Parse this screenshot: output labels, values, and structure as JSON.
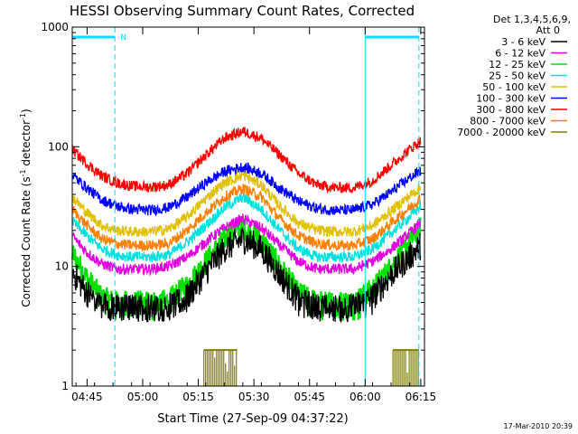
{
  "chart_data": {
    "type": "line",
    "title": "HESSI Observing Summary Count Rates, Corrected",
    "ylabel_main": "Corrected Count Rate (s",
    "ylabel_sup1": "-1",
    "ylabel_mid": " detector",
    "ylabel_sup2": "-1",
    "ylabel_end": ")",
    "xlabel": "Start Time (27-Sep-09 04:37:22)",
    "y_scale": "log",
    "ylim": [
      1,
      1000
    ],
    "y_ticks": [
      {
        "value": 1,
        "label": "1"
      },
      {
        "value": 10,
        "label": "10"
      },
      {
        "value": 100,
        "label": "100"
      },
      {
        "value": 1000,
        "label": "1000"
      }
    ],
    "x_range_min": [
      4.0,
      99.0
    ],
    "x_ticks": [
      {
        "value": 8,
        "label": "04:45"
      },
      {
        "value": 23,
        "label": "05:00"
      },
      {
        "value": 38,
        "label": "05:15"
      },
      {
        "value": 53,
        "label": "05:30"
      },
      {
        "value": 68,
        "label": "05:45"
      },
      {
        "value": 83,
        "label": "06:00"
      },
      {
        "value": 98,
        "label": "06:15"
      }
    ],
    "legend": {
      "header1": "Det 1,3,4,5,6,9,",
      "header2": "Att 0",
      "placement": "right"
    },
    "series": [
      {
        "name": "3 - 6 keV",
        "color": "#000000",
        "x": [
          4,
          8,
          12,
          16,
          20,
          25,
          30,
          35,
          40,
          45,
          50,
          55,
          60,
          65,
          70,
          75,
          80,
          85,
          90,
          95,
          98
        ],
        "y": [
          9,
          6,
          4.8,
          4.5,
          4.5,
          4.5,
          4.5,
          5.5,
          9,
          14,
          17,
          14,
          8.5,
          5.2,
          4.5,
          4.5,
          4.5,
          5.5,
          8.5,
          12,
          15
        ]
      },
      {
        "name": "6 - 12 keV",
        "color": "#e000e0",
        "x": [
          4,
          8,
          12,
          16,
          20,
          25,
          30,
          35,
          40,
          45,
          50,
          55,
          60,
          65,
          70,
          75,
          80,
          85,
          90,
          95,
          98
        ],
        "y": [
          18,
          13,
          10.5,
          9.5,
          9.5,
          9.5,
          10,
          12,
          16,
          21,
          25,
          21,
          15,
          11,
          9.5,
          9.5,
          9.5,
          11,
          14,
          19,
          23
        ]
      },
      {
        "name": "12 - 25 keV",
        "color": "#00e000",
        "x": [
          4,
          8,
          12,
          16,
          20,
          25,
          30,
          35,
          40,
          45,
          50,
          55,
          60,
          65,
          70,
          75,
          80,
          85,
          90,
          95,
          98
        ],
        "y": [
          13,
          8,
          5.5,
          5,
          5,
          5,
          5.2,
          7,
          11,
          17,
          21,
          17,
          10,
          6,
          5,
          5,
          5,
          6.5,
          10,
          16,
          21
        ]
      },
      {
        "name": "25 - 50 keV",
        "color": "#00e0e0",
        "x": [
          4,
          8,
          12,
          16,
          20,
          25,
          30,
          35,
          40,
          45,
          50,
          55,
          60,
          65,
          70,
          75,
          80,
          85,
          90,
          95,
          98
        ],
        "y": [
          24,
          18,
          14,
          12.5,
          12,
          12,
          12.5,
          16,
          22,
          31,
          38,
          30,
          20,
          14,
          12,
          12,
          12,
          14,
          19,
          26,
          32
        ]
      },
      {
        "name": "50 - 100 keV",
        "color": "#e0c000",
        "x": [
          4,
          8,
          12,
          16,
          20,
          25,
          30,
          35,
          40,
          45,
          50,
          55,
          60,
          65,
          70,
          75,
          80,
          85,
          90,
          95,
          98
        ],
        "y": [
          38,
          28,
          22,
          20,
          19.5,
          19.5,
          20.5,
          26,
          37,
          50,
          58,
          48,
          32,
          23,
          20,
          19.5,
          19.5,
          22,
          29,
          39,
          46
        ]
      },
      {
        "name": "100 - 300 keV",
        "color": "#0000ff",
        "x": [
          4,
          8,
          12,
          16,
          20,
          25,
          30,
          35,
          40,
          45,
          50,
          55,
          60,
          65,
          70,
          75,
          80,
          85,
          90,
          95,
          98
        ],
        "y": [
          58,
          45,
          36,
          32,
          30,
          29.5,
          31,
          38,
          50,
          62,
          68,
          60,
          45,
          35,
          30.5,
          29.5,
          29.5,
          33,
          42,
          55,
          63
        ]
      },
      {
        "name": "300 - 800 keV",
        "color": "#ff0000",
        "x": [
          4,
          8,
          12,
          16,
          20,
          25,
          30,
          35,
          40,
          45,
          50,
          55,
          60,
          65,
          70,
          75,
          80,
          85,
          90,
          95,
          98
        ],
        "y": [
          95,
          72,
          57,
          50,
          47,
          46,
          48,
          60,
          85,
          118,
          135,
          118,
          85,
          60,
          48,
          45.5,
          45.5,
          52,
          70,
          95,
          112
        ]
      },
      {
        "name": "800 - 7000 keV",
        "color": "#ff8000",
        "x": [
          4,
          8,
          12,
          16,
          20,
          25,
          30,
          35,
          40,
          45,
          50,
          55,
          60,
          65,
          70,
          75,
          80,
          85,
          90,
          95,
          98
        ],
        "y": [
          30,
          22,
          17,
          15.5,
          15,
          15,
          15.5,
          20,
          28,
          38,
          45,
          38,
          25,
          18,
          15.5,
          15,
          15,
          17,
          23,
          31,
          37
        ]
      },
      {
        "name": "7000 - 20000 keV",
        "color": "#808000",
        "bars": [
          [
            39.5,
            48.5
          ],
          [
            90.5,
            97.5
          ]
        ],
        "bar_level": 2
      }
    ],
    "annotations": [
      {
        "label": "N",
        "x_start": 4,
        "x_end": 15.5
      }
    ],
    "cyan_segments": [
      [
        4,
        15.5
      ],
      [
        83,
        97.5
      ]
    ],
    "vertical_lines": [
      {
        "x": 4,
        "style": "solid"
      },
      {
        "x": 15.5,
        "style": "dashed"
      },
      {
        "x": 83,
        "style": "solid"
      },
      {
        "x": 97.5,
        "style": "dashed"
      }
    ],
    "grid": false
  },
  "footer": "17-Mar-2010 20:39",
  "colors": {
    "cyan_bar": "#00e0ff",
    "axis": "#000000"
  }
}
